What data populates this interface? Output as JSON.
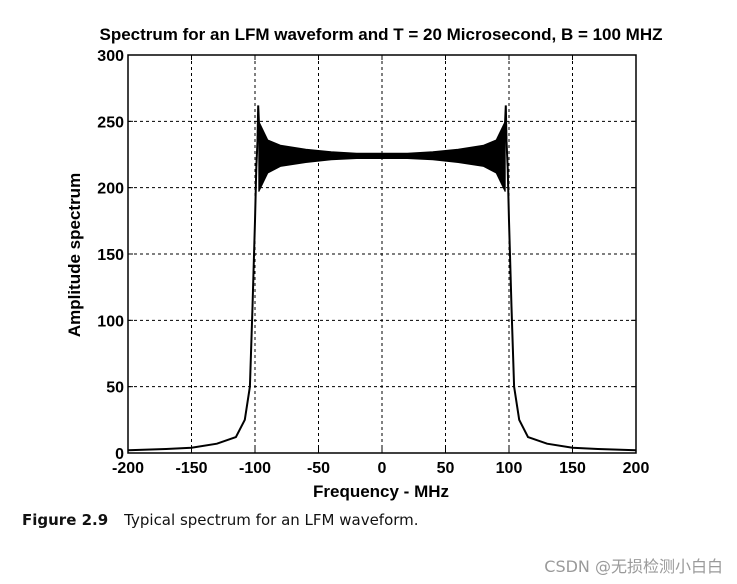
{
  "chart_data": {
    "type": "line",
    "title": "Spectrum for an LFM waveform and T = 20 Microsecond, B = 100 MHZ",
    "xlabel": "Frequency - MHz",
    "ylabel": "Amplitude spectrum",
    "xlim": [
      -200,
      200
    ],
    "ylim": [
      0,
      300
    ],
    "xticks": [
      "-200",
      "-150",
      "-100",
      "-50",
      "0",
      "50",
      "100",
      "150",
      "200"
    ],
    "yticks": [
      "0",
      "50",
      "100",
      "150",
      "200",
      "250",
      "300"
    ],
    "grid": true,
    "line_color": "#000000",
    "series": [
      {
        "x": [
          -200,
          -170,
          -150,
          -130,
          -115,
          -108,
          -104,
          -102,
          -100,
          -99,
          -98,
          -97.5,
          -96,
          -90,
          -80,
          -60,
          -40,
          -20,
          0,
          20,
          40,
          60,
          80,
          90,
          96,
          97.5,
          98,
          99,
          100,
          102,
          104,
          108,
          115,
          130,
          150,
          170,
          200
        ],
        "y": [
          2,
          3,
          4,
          7,
          12,
          25,
          50,
          110,
          175,
          215,
          235,
          262,
          228,
          226,
          225,
          224,
          224,
          224,
          224,
          224,
          224,
          224,
          225,
          226,
          228,
          262,
          235,
          215,
          175,
          110,
          50,
          25,
          12,
          7,
          4,
          3,
          2
        ],
        "oscillation_envelope": {
          "x": [
            -97,
            -90,
            -80,
            -60,
            -40,
            -20,
            0,
            20,
            40,
            60,
            80,
            90,
            97
          ],
          "upper": [
            250,
            236,
            232,
            229,
            227,
            226,
            226,
            226,
            227,
            229,
            232,
            236,
            250
          ],
          "lower": [
            197,
            211,
            216,
            219,
            221,
            222,
            222,
            222,
            221,
            219,
            216,
            211,
            197
          ]
        }
      }
    ]
  },
  "caption": {
    "figure_number": "Figure 2.9",
    "text": "Typical spectrum for an LFM waveform."
  },
  "watermark": "CSDN @无损检测小白白"
}
